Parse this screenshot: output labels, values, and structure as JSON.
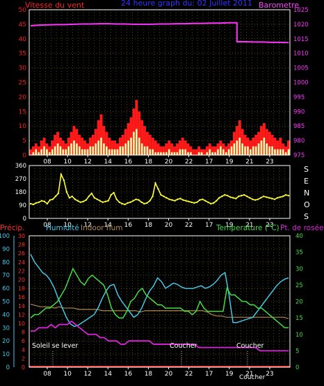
{
  "colors": {
    "background": "#000000",
    "frame": "#ffffff",
    "grid": "#7a7a00",
    "wind": "#ff1a1a",
    "gust": "#ffffb0",
    "barometer": "#ff33ff",
    "winddir": "#ffff33",
    "precip": "#ff3030",
    "humidity": "#44c8e8",
    "indoor": "#b08a50",
    "temperature": "#44dd44",
    "dewpoint": "#dd22dd",
    "title": "#3333ff",
    "axis_right_b": "#ff44ff",
    "axis_right_c": "#44dd44",
    "axis_left_c2": "#44c8e8",
    "axis_left_c1": "#ff3030"
  },
  "header": {
    "left_label": "Vitesse du vent",
    "title": "24 heure graph du:  02 Juillet 2011",
    "right_label": "Barometre"
  },
  "panel_b": {
    "right_label_letters": [
      "S",
      "E",
      "N",
      "O",
      "S"
    ]
  },
  "panel_c": {
    "label_precip": "Précip.",
    "label_humidity": "Humidité",
    "label_indoor": "Indoor hum",
    "label_temp": "Temperature (°C)",
    "label_dew": "Pt. de rosée",
    "sunrise": "Soleil se lever",
    "sunset1": "Coucher",
    "sunset2": "Coucher"
  },
  "chart_data": [
    {
      "type": "area",
      "panel": "wind_barometer",
      "x_ticks": [
        "08",
        "10",
        "12",
        "14",
        "16",
        "18",
        "20",
        "22",
        "17",
        "19",
        "21",
        "23"
      ],
      "y_left": {
        "label": "Vitesse du vent",
        "min": 0,
        "max": 50,
        "ticks": [
          "0",
          "5",
          "10",
          "15",
          "20",
          "25",
          "30",
          "35",
          "40",
          "45",
          "50"
        ]
      },
      "y_right": {
        "label": "Barometre",
        "min": 975,
        "max": 1025,
        "ticks": [
          "975",
          "980",
          "985",
          "990",
          "995",
          "1000",
          "1005",
          "1010",
          "1015",
          "1020",
          "1025"
        ]
      },
      "grid": true,
      "series": [
        {
          "name": "Vitesse du vent",
          "role": "wind",
          "values": [
            2,
            3,
            4,
            3,
            5,
            6,
            4,
            3,
            5,
            7,
            8,
            6,
            5,
            4,
            6,
            8,
            10,
            9,
            7,
            6,
            5,
            4,
            6,
            7,
            9,
            12,
            14,
            10,
            8,
            6,
            5,
            5,
            4,
            6,
            7,
            9,
            11,
            13,
            16,
            19,
            15,
            12,
            10,
            8,
            7,
            6,
            5,
            4,
            3,
            3,
            4,
            5,
            4,
            3,
            4,
            5,
            6,
            5,
            4,
            3,
            2,
            2,
            3,
            2,
            2,
            3,
            4,
            3,
            3,
            4,
            5,
            4,
            3,
            4,
            5,
            8,
            10,
            12,
            9,
            7,
            6,
            5,
            6,
            7,
            8,
            10,
            11,
            9,
            8,
            7,
            6,
            5,
            6,
            4,
            3,
            5
          ]
        },
        {
          "name": "Rafale",
          "role": "gust",
          "values": [
            0,
            1,
            2,
            1,
            2,
            3,
            2,
            1,
            2,
            3,
            4,
            3,
            2,
            2,
            3,
            4,
            5,
            4,
            3,
            2,
            2,
            2,
            3,
            3,
            4,
            5,
            6,
            4,
            3,
            2,
            2,
            2,
            2,
            3,
            3,
            4,
            5,
            6,
            8,
            9,
            6,
            4,
            3,
            3,
            2,
            2,
            1,
            1,
            1,
            1,
            1,
            2,
            1,
            1,
            1,
            2,
            2,
            2,
            1,
            1,
            0,
            0,
            1,
            1,
            0,
            1,
            2,
            1,
            1,
            2,
            3,
            2,
            1,
            2,
            3,
            4,
            5,
            6,
            4,
            3,
            3,
            2,
            3,
            3,
            4,
            5,
            6,
            4,
            3,
            3,
            2,
            2,
            2,
            2,
            1,
            2
          ]
        },
        {
          "name": "Barometre",
          "role": "barometer",
          "values": [
            1019.5,
            1019.7,
            1019.8,
            1019.9,
            1019.9,
            1020,
            1020.1,
            1020.1,
            1020.2,
            1020.2,
            1020.1,
            1020.1,
            1020,
            1020,
            1020,
            1020.1,
            1020.1,
            1020.2,
            1020.2,
            1020.3,
            1020.3,
            1020.4,
            1020.4,
            1020.5,
            1014,
            1014,
            1013.9,
            1013.9,
            1013.8,
            1013.8,
            1013.7
          ]
        }
      ]
    },
    {
      "type": "scatter",
      "panel": "wind_direction",
      "x_ticks": [
        "08",
        "10",
        "12",
        "14",
        "16",
        "18",
        "20",
        "22",
        "17",
        "19",
        "21",
        "23"
      ],
      "y_left": {
        "min": 0,
        "max": 360,
        "ticks": [
          "0",
          "90",
          "180",
          "270",
          "360"
        ]
      },
      "grid": true,
      "series": [
        {
          "name": "Direction",
          "role": "winddir",
          "values": [
            100,
            95,
            105,
            110,
            120,
            115,
            100,
            125,
            130,
            150,
            170,
            300,
            260,
            180,
            140,
            150,
            130,
            120,
            110,
            115,
            125,
            150,
            170,
            140,
            130,
            120,
            110,
            115,
            120,
            160,
            175,
            130,
            110,
            100,
            95,
            105,
            110,
            120,
            130,
            125,
            110,
            100,
            105,
            120,
            150,
            240,
            200,
            160,
            150,
            140,
            130,
            125,
            120,
            130,
            135,
            125,
            120,
            115,
            110,
            105,
            110,
            125,
            130,
            120,
            110,
            100,
            105,
            120,
            140,
            150,
            160,
            155,
            145,
            140,
            135,
            150,
            155,
            160,
            150,
            140,
            130,
            125,
            130,
            140,
            150,
            145,
            140,
            135,
            130,
            140,
            145,
            150,
            160,
            155
          ]
        }
      ]
    },
    {
      "type": "line",
      "panel": "temperature_humidity",
      "x_ticks": [
        "08",
        "10",
        "12",
        "14",
        "16",
        "18",
        "20",
        "22",
        "17",
        "19",
        "21",
        "23"
      ],
      "y_left_outer": {
        "label": "Humidité",
        "min": 0,
        "max": 100,
        "ticks": [
          "0",
          "10",
          "20",
          "30",
          "40",
          "50",
          "60",
          "70",
          "80",
          "90",
          "100"
        ]
      },
      "y_left_inner": {
        "label": "Précip.",
        "min": 0,
        "max": 30,
        "ticks": [
          "0",
          "2",
          "4",
          "6",
          "8",
          "10",
          "12",
          "14",
          "16",
          "18",
          "20",
          "22",
          "24",
          "26",
          "28",
          "30"
        ]
      },
      "y_right": {
        "label": "Temperature (°C)",
        "min": 0,
        "max": 40,
        "ticks": [
          "0",
          "5",
          "10",
          "15",
          "20",
          "25",
          "30",
          "35",
          "40"
        ]
      },
      "grid": true,
      "series": [
        {
          "name": "Humidité",
          "role": "humidity",
          "values": [
            86,
            80,
            76,
            72,
            70,
            66,
            60,
            52,
            45,
            38,
            33,
            31,
            32,
            34,
            36,
            38,
            40,
            45,
            52,
            58,
            62,
            63,
            55,
            50,
            46,
            42,
            38,
            40,
            45,
            52,
            58,
            62,
            68,
            65,
            60,
            62,
            64,
            63,
            61,
            60,
            60,
            60,
            61,
            62,
            60,
            61,
            63,
            66,
            70,
            72,
            55,
            34,
            34,
            35,
            36,
            37,
            38,
            42,
            46,
            50,
            54,
            58,
            62,
            65,
            67,
            68
          ]
        },
        {
          "name": "Indoor hum",
          "role": "indoor",
          "values": [
            48,
            47,
            46,
            46,
            46,
            45,
            46,
            45,
            45,
            45,
            44,
            44,
            44,
            44,
            44,
            43,
            43,
            43,
            43,
            43,
            43,
            43,
            43,
            42,
            43,
            43,
            43,
            43,
            43,
            43,
            43,
            43,
            43,
            43,
            43,
            43,
            43,
            42,
            40,
            39,
            39,
            38,
            38,
            38,
            38,
            38,
            38,
            38,
            38,
            38,
            38,
            38,
            38,
            38,
            37
          ]
        },
        {
          "name": "Temperature",
          "role": "temperature",
          "values": [
            15,
            16,
            16,
            17,
            18,
            18,
            19,
            20,
            22,
            24,
            27,
            30,
            28,
            26,
            25,
            27,
            28,
            27,
            26,
            25,
            22,
            18,
            16,
            15,
            15,
            17,
            20,
            21,
            23,
            24,
            22,
            21,
            20,
            19,
            19,
            18,
            18,
            18,
            18,
            18,
            17,
            17,
            16,
            17,
            20,
            18,
            17,
            17,
            17,
            17,
            17,
            24,
            22,
            22,
            21,
            20,
            20,
            19,
            19,
            18,
            18,
            17,
            16,
            15,
            14,
            13,
            12,
            12
          ]
        },
        {
          "name": "Pt. de rosée",
          "role": "dewpoint",
          "values": [
            11,
            11,
            12,
            12,
            12,
            13,
            12,
            13,
            13,
            13,
            14,
            13,
            12,
            11,
            10,
            10,
            10,
            9,
            9,
            8,
            8,
            8,
            7,
            7,
            8,
            8,
            8,
            8,
            8,
            8,
            7,
            7,
            7,
            7,
            7,
            7,
            7,
            7,
            7,
            7,
            7,
            6,
            6,
            6,
            6,
            6,
            6,
            6,
            6,
            6,
            6,
            6,
            6,
            6,
            6,
            6,
            5,
            5,
            5,
            5,
            5,
            5,
            5,
            5
          ]
        },
        {
          "name": "Précip.",
          "role": "precip",
          "values": [
            0,
            0,
            0,
            0,
            0,
            0,
            0,
            0,
            0,
            0
          ]
        }
      ]
    }
  ]
}
